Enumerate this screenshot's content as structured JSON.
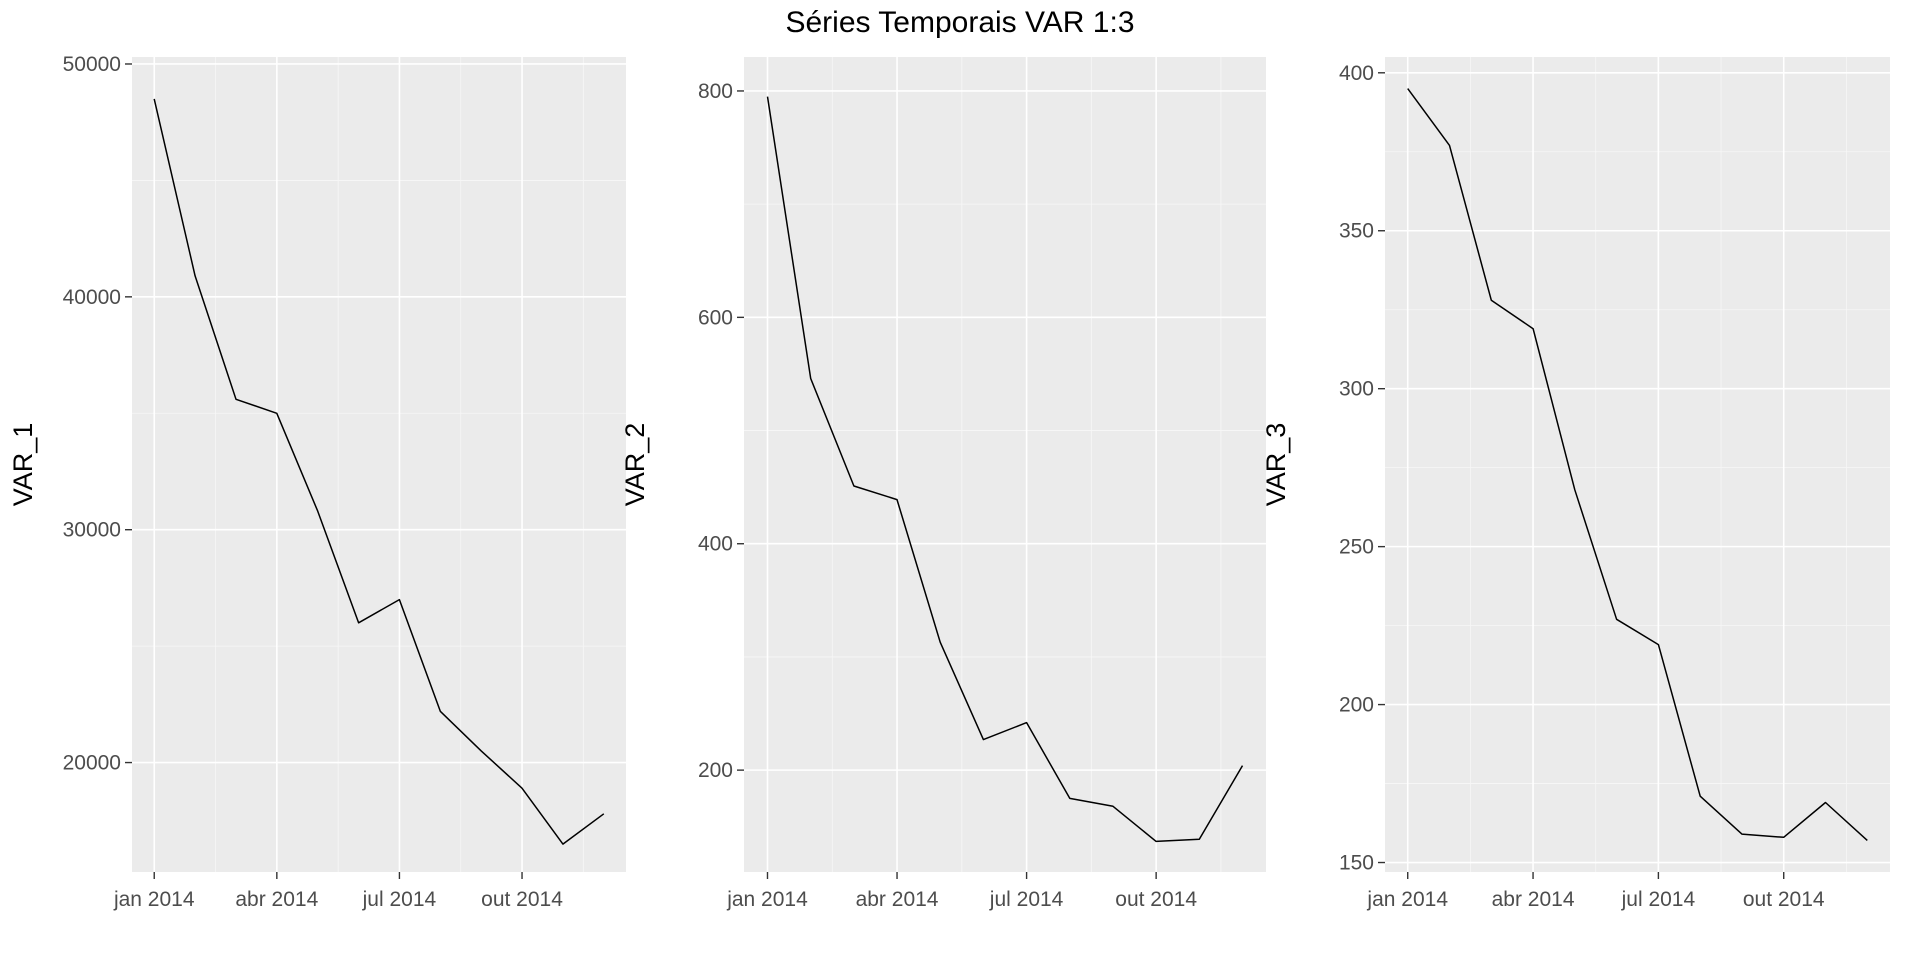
{
  "chart_data": {
    "type": "line",
    "title": "Séries Temporais VAR 1:3",
    "x": [
      "2014-01",
      "2014-02",
      "2014-03",
      "2014-04",
      "2014-05",
      "2014-06",
      "2014-07",
      "2014-08",
      "2014-09",
      "2014-10",
      "2014-11",
      "2014-12"
    ],
    "x_tick_labels": [
      "jan 2014",
      "abr 2014",
      "jul 2014",
      "out 2014"
    ],
    "grid": true,
    "panels": [
      {
        "ylabel": "VAR_1",
        "ylim": [
          15300,
          50300
        ],
        "yticks": [
          20000,
          30000,
          40000,
          50000
        ],
        "ytick_labels": [
          "20000",
          "30000",
          "40000",
          "50000"
        ],
        "series": [
          {
            "values": [
              48500,
              40900,
              35600,
              35000,
              30800,
              26000,
              27000,
              22200,
              20500,
              18900,
              16500,
              17800
            ]
          }
        ]
      },
      {
        "ylabel": "VAR_2",
        "ylim": [
          110,
          830
        ],
        "yticks": [
          200,
          400,
          600,
          800
        ],
        "ytick_labels": [
          "200",
          "400",
          "600",
          "800"
        ],
        "series": [
          {
            "values": [
              795,
              546,
              451,
              439,
              313,
              227,
              242,
              175,
              168,
              137,
              139,
              204
            ]
          }
        ]
      },
      {
        "ylabel": "VAR_3",
        "ylim": [
          147,
          405
        ],
        "yticks": [
          150,
          200,
          250,
          300,
          350,
          400
        ],
        "ytick_labels": [
          "150",
          "200",
          "250",
          "300",
          "350",
          "400"
        ],
        "series": [
          {
            "values": [
              395,
              377,
              328,
              319,
              268,
              227,
              219,
              171,
              159,
              158,
              169,
              157
            ]
          }
        ]
      }
    ]
  }
}
